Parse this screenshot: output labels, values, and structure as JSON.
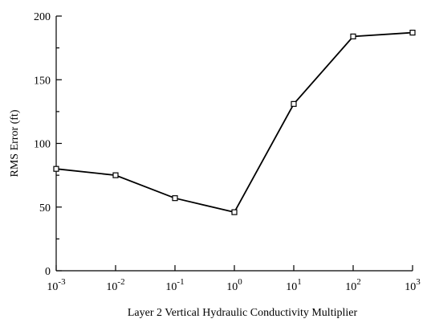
{
  "chart_data": {
    "type": "line",
    "title": "",
    "xlabel": "Layer 2 Vertical Hydraulic Conductivity Multiplier",
    "ylabel": "RMS Error (ft)",
    "x_scale": "log",
    "xlim": [
      0.001,
      1000
    ],
    "ylim": [
      0,
      200
    ],
    "x_ticks": [
      {
        "base": "10",
        "exp": "-3",
        "value": 0.001
      },
      {
        "base": "10",
        "exp": "-2",
        "value": 0.01
      },
      {
        "base": "10",
        "exp": "-1",
        "value": 0.1
      },
      {
        "base": "10",
        "exp": "0",
        "value": 1
      },
      {
        "base": "10",
        "exp": "1",
        "value": 10
      },
      {
        "base": "10",
        "exp": "2",
        "value": 100
      },
      {
        "base": "10",
        "exp": "3",
        "value": 1000
      }
    ],
    "y_ticks": [
      {
        "label": "0",
        "value": 0
      },
      {
        "label": "50",
        "value": 50
      },
      {
        "label": "100",
        "value": 100
      },
      {
        "label": "150",
        "value": 150
      },
      {
        "label": "200",
        "value": 200
      }
    ],
    "y_minor_ticks": [
      25,
      75,
      125,
      175
    ],
    "grid": false,
    "series": [
      {
        "x": [
          0.001,
          0.01,
          0.1,
          1,
          10,
          100,
          1000
        ],
        "y": [
          80,
          75,
          57,
          46,
          131,
          184,
          187
        ],
        "marker": "square-open",
        "color": "#000000"
      }
    ]
  }
}
